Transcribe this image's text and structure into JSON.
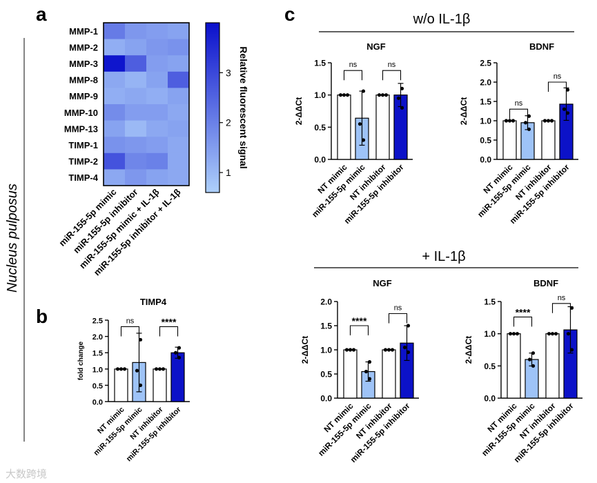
{
  "side_label": "Nucleus pulposus",
  "watermark": "大数跨境",
  "colors": {
    "light_blue": "#9ec3f7",
    "dark_blue": "#0c12c8",
    "white": "#ffffff",
    "heat_low": "#aed0fb",
    "heat_high": "#0a0fcc"
  },
  "chart_data": [
    {
      "type": "heatmap",
      "panel": "a",
      "rows": [
        "MMP-1",
        "MMP-2",
        "MMP-3",
        "MMP-8",
        "MMP-9",
        "MMP-10",
        "MMP-13",
        "TIMP-1",
        "TIMP-2",
        "TIMP-4"
      ],
      "columns": [
        "miR-155-5p mimic",
        "miR-155-5p inhibitor",
        "miR-155-5p mimic + IL-1β",
        "miR-155-5p inhibitor + IL-1β"
      ],
      "values": [
        [
          2.1,
          1.6,
          1.5,
          1.4
        ],
        [
          1.2,
          1.4,
          1.6,
          1.7
        ],
        [
          3.9,
          2.6,
          1.5,
          1.4
        ],
        [
          1.3,
          1.1,
          1.4,
          2.6
        ],
        [
          1.2,
          1.3,
          1.2,
          1.4
        ],
        [
          1.8,
          1.5,
          1.5,
          1.3
        ],
        [
          1.4,
          1.0,
          1.3,
          1.4
        ],
        [
          1.7,
          1.6,
          1.5,
          1.3
        ],
        [
          2.8,
          1.9,
          2.0,
          1.3
        ],
        [
          1.3,
          1.6,
          1.4,
          1.3
        ]
      ],
      "colorbar": {
        "label": "Relative fluorescent signal",
        "ticks": [
          "1",
          "2",
          "3"
        ],
        "tick_values": [
          1,
          2,
          3
        ],
        "range": [
          0.6,
          4.0
        ]
      }
    },
    {
      "type": "bar",
      "panel": "b",
      "title": "TIMP4",
      "ylabel": "fold change",
      "ylim": [
        0,
        2.5
      ],
      "yticks": [
        "0.0",
        "0.5",
        "1.0",
        "1.5",
        "2.0",
        "2.5"
      ],
      "categories": [
        "NT mimic",
        "miR-155-5p mimic",
        "NT inhibitor",
        "miR-155-5p inhibitor"
      ],
      "values": [
        1.0,
        1.2,
        1.0,
        1.5
      ],
      "errors": [
        0,
        0.9,
        0,
        0.17
      ],
      "points": [
        [
          1.0,
          1.0,
          1.0
        ],
        [
          1.9,
          0.95,
          0.5
        ],
        [
          1.0,
          1.0,
          1.0
        ],
        [
          1.65,
          1.5,
          1.35
        ]
      ],
      "significance": [
        {
          "pair": [
            0,
            1
          ],
          "label": "ns",
          "y": 2.3
        },
        {
          "pair": [
            2,
            3
          ],
          "label": "****",
          "y": 2.3
        }
      ]
    },
    {
      "type": "bar",
      "panel": "c",
      "condition": "w/o IL-1β",
      "title": "NGF",
      "ylabel": "2-ΔΔCt",
      "ylim": [
        0,
        1.5
      ],
      "yticks": [
        "0.0",
        "0.5",
        "1.0",
        "1.5"
      ],
      "categories": [
        "NT mimic",
        "miR-155-5p mimic",
        "NT inhibitor",
        "miR-155-5p inhibitor"
      ],
      "values": [
        1.0,
        0.64,
        1.0,
        1.0
      ],
      "errors": [
        0,
        0.42,
        0,
        0.18
      ],
      "points": [
        [
          1.0,
          1.0,
          1.0
        ],
        [
          1.06,
          0.55,
          0.3
        ],
        [
          1.0,
          1.0,
          1.0
        ],
        [
          1.1,
          0.95,
          0.8
        ]
      ],
      "significance": [
        {
          "pair": [
            0,
            1
          ],
          "label": "ns",
          "y": 1.38
        },
        {
          "pair": [
            2,
            3
          ],
          "label": "ns",
          "y": 1.38
        }
      ]
    },
    {
      "type": "bar",
      "panel": "c",
      "condition": "w/o IL-1β",
      "title": "BDNF",
      "ylabel": "2-ΔΔCt",
      "ylim": [
        0,
        2.5
      ],
      "yticks": [
        "0.0",
        "0.5",
        "1.0",
        "1.5",
        "2.0",
        "2.5"
      ],
      "categories": [
        "NT mimic",
        "miR-155-5p mimic",
        "NT inhibitor",
        "miR-155-5p inhibitor"
      ],
      "values": [
        1.0,
        0.95,
        1.0,
        1.43
      ],
      "errors": [
        0,
        0.18,
        0,
        0.42
      ],
      "points": [
        [
          1.0,
          1.0,
          1.0
        ],
        [
          1.12,
          0.95,
          0.78
        ],
        [
          1.0,
          1.0,
          1.0
        ],
        [
          1.8,
          1.3,
          1.2
        ]
      ],
      "significance": [
        {
          "pair": [
            0,
            1
          ],
          "label": "ns",
          "y": 1.3
        },
        {
          "pair": [
            2,
            3
          ],
          "label": "ns",
          "y": 2.0
        }
      ]
    },
    {
      "type": "bar",
      "panel": "c",
      "condition": "+ IL-1β",
      "title": "NGF",
      "ylabel": "2-ΔΔCt",
      "ylim": [
        0,
        2.0
      ],
      "yticks": [
        "0.0",
        "0.5",
        "1.0",
        "1.5",
        "2.0"
      ],
      "categories": [
        "NT mimic",
        "miR-155-5p mimic",
        "NT inhibitor",
        "miR-155-5p inhibitor"
      ],
      "values": [
        1.0,
        0.55,
        1.0,
        1.14
      ],
      "errors": [
        0,
        0.2,
        0,
        0.36
      ],
      "points": [
        [
          1.0,
          1.0,
          1.0
        ],
        [
          0.75,
          0.55,
          0.4
        ],
        [
          1.0,
          1.0,
          1.0
        ],
        [
          1.5,
          1.05,
          0.95
        ]
      ],
      "significance": [
        {
          "pair": [
            0,
            1
          ],
          "label": "****",
          "y": 1.5
        },
        {
          "pair": [
            2,
            3
          ],
          "label": "ns",
          "y": 1.75
        }
      ]
    },
    {
      "type": "bar",
      "panel": "c",
      "condition": "+ IL-1β",
      "title": "BDNF",
      "ylabel": "2-ΔΔCt",
      "ylim": [
        0,
        1.5
      ],
      "yticks": [
        "0.0",
        "0.5",
        "1.0",
        "1.5"
      ],
      "categories": [
        "NT mimic",
        "miR-155-5p mimic",
        "NT inhibitor",
        "miR-155-5p inhibitor"
      ],
      "values": [
        1.0,
        0.6,
        1.0,
        1.06
      ],
      "errors": [
        0,
        0.1,
        0,
        0.36
      ],
      "points": [
        [
          1.0,
          1.0,
          1.0
        ],
        [
          0.7,
          0.6,
          0.5
        ],
        [
          1.0,
          1.0,
          1.0
        ],
        [
          1.4,
          1.0,
          0.75
        ]
      ],
      "significance": [
        {
          "pair": [
            0,
            1
          ],
          "label": "****",
          "y": 1.26
        },
        {
          "pair": [
            2,
            3
          ],
          "label": "ns",
          "y": 1.47
        }
      ]
    }
  ],
  "panel_letters": {
    "a": "a",
    "b": "b",
    "c": "c"
  },
  "conditions": {
    "without": "w/o IL-1β",
    "with": "+ IL-1β"
  }
}
